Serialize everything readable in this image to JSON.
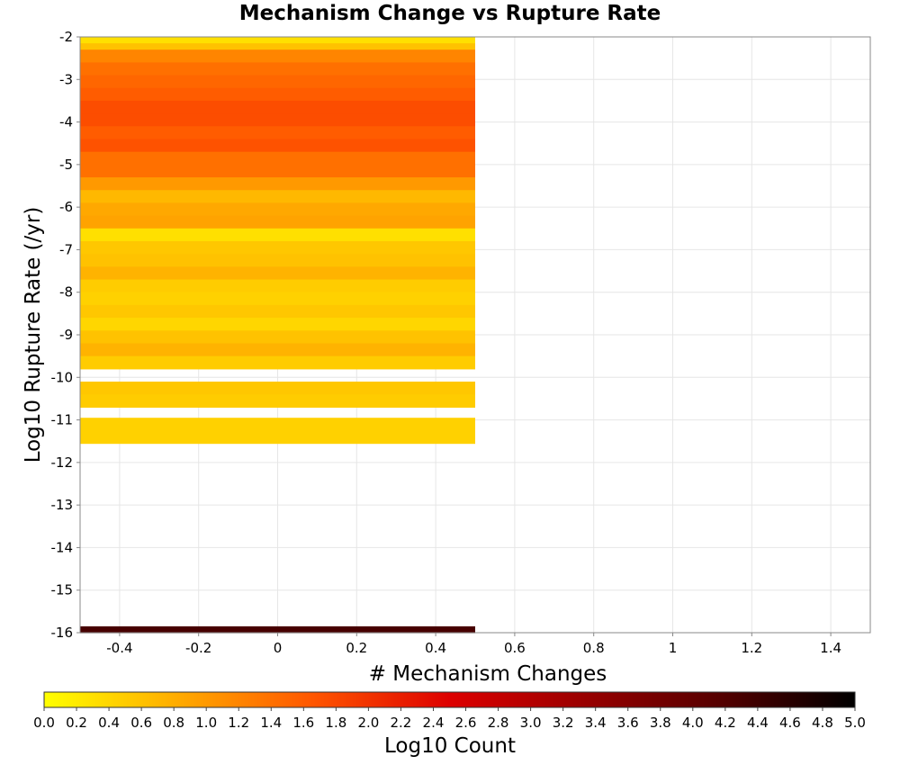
{
  "chart_data": {
    "type": "heatmap",
    "title": "Mechanism Change vs Rupture Rate",
    "xlabel": "# Mechanism Changes",
    "ylabel": "Log10 Rupture Rate (/yr)",
    "xlim": [
      -0.5,
      1.5
    ],
    "ylim": [
      -16,
      -2
    ],
    "x_ticks": [
      "-0.4",
      "-0.2",
      "0",
      "0.2",
      "0.4",
      "0.6",
      "0.8",
      "1",
      "1.2",
      "1.4"
    ],
    "y_ticks": [
      "-2",
      "-3",
      "-4",
      "-5",
      "-6",
      "-7",
      "-8",
      "-9",
      "-10",
      "-11",
      "-12",
      "-13",
      "-14",
      "-15",
      "-16"
    ],
    "grid": true,
    "colorbar": {
      "label": "Log10 Count",
      "range": [
        0,
        5
      ],
      "ticks": [
        "0.0",
        "0.2",
        "0.4",
        "0.6",
        "0.8",
        "1.0",
        "1.2",
        "1.4",
        "1.6",
        "1.8",
        "2.0",
        "2.2",
        "2.4",
        "2.6",
        "2.8",
        "3.0",
        "3.2",
        "3.4",
        "3.6",
        "3.8",
        "4.0",
        "4.2",
        "4.4",
        "4.6",
        "4.8",
        "5.0"
      ],
      "colors": [
        "#ffff00",
        "#ffaa00",
        "#ff5500",
        "#dd0000",
        "#990000",
        "#550000",
        "#000000"
      ]
    },
    "cell_x": [
      -0.5,
      0.5
    ],
    "cells": [
      {
        "y0": -2.0,
        "y1": -2.15,
        "value": 0.3
      },
      {
        "y0": -2.15,
        "y1": -2.3,
        "value": 0.6
      },
      {
        "y0": -2.3,
        "y1": -2.6,
        "value": 1.2
      },
      {
        "y0": -2.6,
        "y1": -2.9,
        "value": 1.4
      },
      {
        "y0": -2.9,
        "y1": -3.2,
        "value": 1.5
      },
      {
        "y0": -3.2,
        "y1": -3.5,
        "value": 1.6
      },
      {
        "y0": -3.5,
        "y1": -3.8,
        "value": 1.75
      },
      {
        "y0": -3.8,
        "y1": -4.1,
        "value": 1.75
      },
      {
        "y0": -4.1,
        "y1": -4.4,
        "value": 1.6
      },
      {
        "y0": -4.4,
        "y1": -4.7,
        "value": 1.7
      },
      {
        "y0": -4.7,
        "y1": -5.0,
        "value": 1.4
      },
      {
        "y0": -5.0,
        "y1": -5.3,
        "value": 1.4
      },
      {
        "y0": -5.3,
        "y1": -5.6,
        "value": 1.0
      },
      {
        "y0": -5.6,
        "y1": -5.9,
        "value": 0.7
      },
      {
        "y0": -5.9,
        "y1": -6.2,
        "value": 0.85
      },
      {
        "y0": -6.2,
        "y1": -6.5,
        "value": 0.9
      },
      {
        "y0": -6.5,
        "y1": -6.8,
        "value": 0.3
      },
      {
        "y0": -6.8,
        "y1": -7.1,
        "value": 0.55
      },
      {
        "y0": -7.1,
        "y1": -7.4,
        "value": 0.6
      },
      {
        "y0": -7.4,
        "y1": -7.7,
        "value": 0.75
      },
      {
        "y0": -7.7,
        "y1": -8.0,
        "value": 0.5
      },
      {
        "y0": -8.0,
        "y1": -8.3,
        "value": 0.45
      },
      {
        "y0": -8.3,
        "y1": -8.6,
        "value": 0.55
      },
      {
        "y0": -8.6,
        "y1": -8.9,
        "value": 0.4
      },
      {
        "y0": -8.9,
        "y1": -9.2,
        "value": 0.6
      },
      {
        "y0": -9.2,
        "y1": -9.5,
        "value": 0.75
      },
      {
        "y0": -9.5,
        "y1": -9.8,
        "value": 0.5
      },
      {
        "y0": -10.1,
        "y1": -10.4,
        "value": 0.55
      },
      {
        "y0": -10.4,
        "y1": -10.7,
        "value": 0.5
      },
      {
        "y0": -10.95,
        "y1": -11.25,
        "value": 0.45
      },
      {
        "y0": -11.25,
        "y1": -11.55,
        "value": 0.45
      },
      {
        "y0": -15.85,
        "y1": -16.0,
        "value": 4.3
      }
    ]
  }
}
